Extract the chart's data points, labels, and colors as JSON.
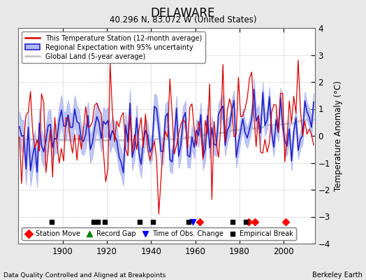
{
  "title": "DELAWARE",
  "subtitle": "40.296 N, 83.072 W (United States)",
  "xlabel_note": "Data Quality Controlled and Aligned at Breakpoints",
  "xlabel_credit": "Berkeley Earth",
  "ylabel": "Temperature Anomaly (°C)",
  "ylim": [
    -4,
    4
  ],
  "xlim": [
    1880,
    2014
  ],
  "yticks": [
    -4,
    -3,
    -2,
    -1,
    0,
    1,
    2,
    3,
    4
  ],
  "xticks": [
    1900,
    1920,
    1940,
    1960,
    1980,
    2000
  ],
  "bg_color": "#e8e8e8",
  "plot_bg_color": "#ffffff",
  "station_color": "#dd0000",
  "regional_color": "#2222cc",
  "regional_fill": "#b0b8f0",
  "global_color": "#c0c0c0",
  "station_move_years": [
    1962,
    1984,
    1987,
    2001
  ],
  "record_gap_years": [],
  "obs_change_years": [
    1959
  ],
  "empirical_break_years": [
    1895,
    1914,
    1916,
    1919,
    1935,
    1941,
    1957,
    1977,
    1983
  ],
  "seed": 17
}
